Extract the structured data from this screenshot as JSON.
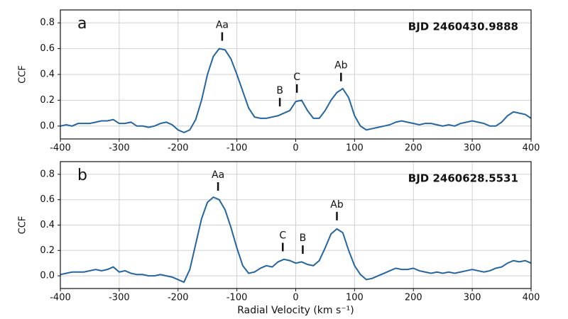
{
  "chart_data": [
    {
      "type": "line",
      "panel_label": "a",
      "epoch_label": "BJD 2460430.9888",
      "ylabel": "CCF",
      "color": "#2465a0",
      "grid": true,
      "xlim": [
        -400,
        400
      ],
      "xticks": [
        -400,
        -300,
        -200,
        -100,
        0,
        100,
        200,
        300,
        400
      ],
      "ylim": [
        -0.1,
        0.9
      ],
      "yticks": [
        {
          "value": 0,
          "label": "0.0"
        },
        0.2,
        0.4,
        0.6,
        0.8
      ],
      "x": [
        -400,
        -390,
        -380,
        -370,
        -360,
        -350,
        -340,
        -330,
        -320,
        -310,
        -300,
        -290,
        -280,
        -270,
        -260,
        -250,
        -240,
        -230,
        -220,
        -210,
        -200,
        -190,
        -180,
        -170,
        -160,
        -150,
        -140,
        -130,
        -120,
        -110,
        -100,
        -90,
        -80,
        -70,
        -60,
        -50,
        -40,
        -30,
        -20,
        -10,
        0,
        10,
        20,
        30,
        40,
        50,
        60,
        70,
        80,
        90,
        100,
        110,
        120,
        130,
        140,
        150,
        160,
        170,
        180,
        190,
        200,
        210,
        220,
        230,
        240,
        250,
        260,
        270,
        280,
        290,
        300,
        310,
        320,
        330,
        340,
        350,
        360,
        370,
        380,
        390,
        400
      ],
      "values": [
        0.0,
        0.01,
        0.0,
        0.02,
        0.02,
        0.02,
        0.03,
        0.04,
        0.04,
        0.05,
        0.02,
        0.02,
        0.03,
        0.0,
        0.0,
        -0.01,
        0.0,
        0.02,
        0.03,
        0.01,
        -0.03,
        -0.05,
        -0.03,
        0.05,
        0.2,
        0.4,
        0.54,
        0.6,
        0.59,
        0.52,
        0.4,
        0.27,
        0.14,
        0.07,
        0.06,
        0.06,
        0.07,
        0.08,
        0.1,
        0.12,
        0.19,
        0.2,
        0.12,
        0.06,
        0.06,
        0.12,
        0.2,
        0.26,
        0.29,
        0.22,
        0.08,
        0.0,
        -0.03,
        -0.02,
        -0.01,
        0.0,
        0.01,
        0.03,
        0.04,
        0.03,
        0.02,
        0.01,
        0.02,
        0.02,
        0.01,
        0.0,
        0.01,
        0.0,
        0.02,
        0.03,
        0.04,
        0.03,
        0.02,
        0.0,
        0.0,
        0.03,
        0.08,
        0.11,
        0.1,
        0.09,
        0.06
      ],
      "annotations": [
        {
          "text": "Aa",
          "x": -125
        },
        {
          "text": "B",
          "x": -27
        },
        {
          "text": "C",
          "x": 2
        },
        {
          "text": "Ab",
          "x": 77
        }
      ]
    },
    {
      "type": "line",
      "panel_label": "b",
      "epoch_label": "BJD 2460628.5531",
      "ylabel": "CCF",
      "xlabel": "Radial Velocity (km s⁻¹)",
      "color": "#2465a0",
      "grid": true,
      "xlim": [
        -400,
        400
      ],
      "xticks": [
        -400,
        -300,
        -200,
        -100,
        0,
        100,
        200,
        300,
        400
      ],
      "ylim": [
        -0.1,
        0.9
      ],
      "yticks": [
        {
          "value": 0,
          "label": "0.0"
        },
        0.2,
        0.4,
        0.6,
        0.8
      ],
      "x": [
        -400,
        -390,
        -380,
        -370,
        -360,
        -350,
        -340,
        -330,
        -320,
        -310,
        -300,
        -290,
        -280,
        -270,
        -260,
        -250,
        -240,
        -230,
        -220,
        -210,
        -200,
        -190,
        -180,
        -170,
        -160,
        -150,
        -140,
        -130,
        -120,
        -110,
        -100,
        -90,
        -80,
        -70,
        -60,
        -50,
        -40,
        -30,
        -20,
        -10,
        0,
        10,
        20,
        30,
        40,
        50,
        60,
        70,
        80,
        90,
        100,
        110,
        120,
        130,
        140,
        150,
        160,
        170,
        180,
        190,
        200,
        210,
        220,
        230,
        240,
        250,
        260,
        270,
        280,
        290,
        300,
        310,
        320,
        330,
        340,
        350,
        360,
        370,
        380,
        390,
        400
      ],
      "values": [
        0.01,
        0.02,
        0.03,
        0.03,
        0.03,
        0.04,
        0.05,
        0.04,
        0.05,
        0.07,
        0.03,
        0.04,
        0.02,
        0.01,
        0.01,
        0.0,
        0.0,
        0.01,
        0.0,
        -0.01,
        -0.03,
        -0.05,
        0.05,
        0.25,
        0.45,
        0.58,
        0.62,
        0.6,
        0.52,
        0.38,
        0.22,
        0.08,
        0.02,
        0.03,
        0.06,
        0.08,
        0.07,
        0.11,
        0.13,
        0.12,
        0.1,
        0.11,
        0.09,
        0.08,
        0.12,
        0.22,
        0.33,
        0.37,
        0.34,
        0.2,
        0.08,
        0.01,
        -0.03,
        -0.02,
        0.0,
        0.02,
        0.04,
        0.06,
        0.05,
        0.05,
        0.06,
        0.04,
        0.03,
        0.02,
        0.03,
        0.02,
        0.03,
        0.02,
        0.03,
        0.04,
        0.05,
        0.04,
        0.03,
        0.04,
        0.06,
        0.07,
        0.1,
        0.12,
        0.11,
        0.12,
        0.1
      ],
      "annotations": [
        {
          "text": "Aa",
          "x": -132
        },
        {
          "text": "C",
          "x": -22
        },
        {
          "text": "B",
          "x": 12
        },
        {
          "text": "Ab",
          "x": 70
        }
      ]
    }
  ]
}
